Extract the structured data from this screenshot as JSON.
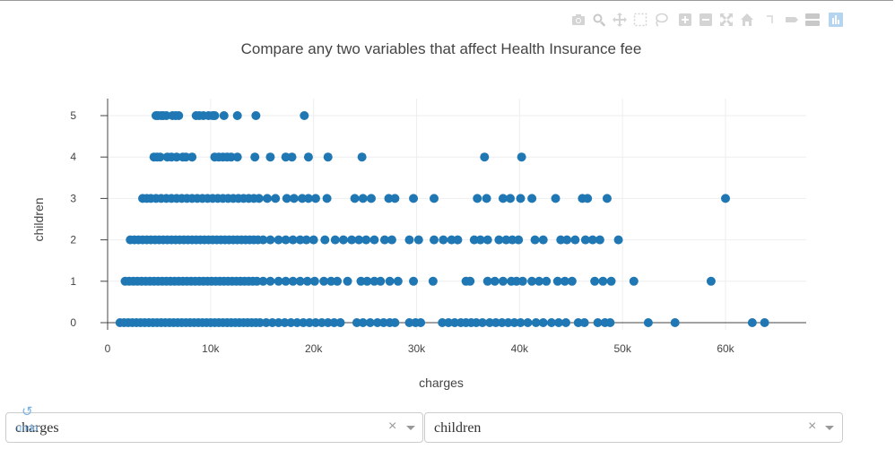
{
  "chart_data": {
    "type": "scatter",
    "title": "Compare any two variables that affect Health Insurance fee",
    "xlabel": "charges",
    "ylabel": "children",
    "xlim": [
      -1000,
      68000
    ],
    "ylim": [
      -0.3,
      5.3
    ],
    "x_ticks": [
      0,
      10000,
      20000,
      30000,
      40000,
      50000,
      60000
    ],
    "x_tick_labels": [
      "0",
      "10k",
      "20k",
      "30k",
      "40k",
      "50k",
      "60k"
    ],
    "y_ticks": [
      0,
      1,
      2,
      3,
      4,
      5
    ],
    "y_tick_labels": [
      "0",
      "1",
      "2",
      "3",
      "4",
      "5"
    ],
    "grid": true,
    "marker_color": "#1f77b4",
    "series": [
      {
        "y": 5,
        "x": [
          4700,
          4900,
          5200,
          5400,
          5700,
          6300,
          6600,
          6900,
          8600,
          8900,
          9300,
          9800,
          10200,
          10400,
          11300,
          12600,
          14400,
          19100
        ]
      },
      {
        "y": 4,
        "x": [
          4500,
          4800,
          5100,
          5800,
          6200,
          6700,
          7300,
          7600,
          8200,
          10400,
          10800,
          11200,
          11600,
          12000,
          12600,
          14300,
          15800,
          17300,
          17900,
          19500,
          21400,
          24700,
          36600,
          40200
        ]
      },
      {
        "y": 3,
        "x": [
          3400,
          3800,
          4200,
          4700,
          5200,
          5700,
          6200,
          6700,
          7200,
          7700,
          8200,
          8700,
          9200,
          9700,
          10200,
          10700,
          11200,
          11700,
          12200,
          12700,
          13200,
          13700,
          14200,
          14700,
          15500,
          16300,
          17400,
          18100,
          18900,
          19500,
          20200,
          21300,
          24000,
          24800,
          25600,
          27300,
          27900,
          29700,
          31700,
          35900,
          36800,
          38400,
          39100,
          40100,
          41200,
          43500,
          46100,
          46600,
          48500,
          60000
        ]
      },
      {
        "y": 2,
        "x": [
          2200,
          2600,
          3000,
          3400,
          3800,
          4200,
          4600,
          5000,
          5400,
          5800,
          6200,
          6600,
          7000,
          7400,
          7800,
          8200,
          8600,
          9000,
          9400,
          9800,
          10200,
          10600,
          11000,
          11400,
          11800,
          12200,
          12600,
          13000,
          13400,
          13800,
          14200,
          14600,
          15100,
          15800,
          16600,
          17300,
          18000,
          18700,
          19300,
          20000,
          21100,
          22100,
          22900,
          23700,
          24400,
          25100,
          25900,
          26900,
          27600,
          29300,
          30200,
          31700,
          32600,
          33400,
          34000,
          35600,
          36200,
          36900,
          38000,
          38700,
          39300,
          39900,
          41500,
          42300,
          44000,
          44600,
          45400,
          46400,
          47100,
          47800,
          49600
        ]
      },
      {
        "y": 1,
        "x": [
          1700,
          2100,
          2500,
          2900,
          3300,
          3700,
          4100,
          4500,
          4900,
          5300,
          5700,
          6100,
          6500,
          6900,
          7300,
          7700,
          8100,
          8500,
          8900,
          9300,
          9700,
          10100,
          10500,
          10900,
          11300,
          11700,
          12100,
          12500,
          12900,
          13300,
          13700,
          14100,
          14500,
          15100,
          15800,
          16600,
          17300,
          18000,
          18700,
          19400,
          20100,
          21000,
          21700,
          22300,
          23300,
          24600,
          25200,
          25900,
          26500,
          27400,
          28200,
          29700,
          31600,
          34800,
          35200,
          36900,
          37600,
          38400,
          39200,
          39700,
          40300,
          41200,
          41900,
          42600,
          43700,
          44400,
          45100,
          47300,
          48100,
          48900,
          51100,
          58600
        ]
      },
      {
        "y": 0,
        "x": [
          1200,
          1600,
          2000,
          2400,
          2800,
          3200,
          3600,
          4000,
          4400,
          4800,
          5200,
          5600,
          6000,
          6400,
          6800,
          7200,
          7600,
          8000,
          8400,
          8800,
          9200,
          9600,
          10000,
          10400,
          10800,
          11200,
          11600,
          12000,
          12400,
          12800,
          13200,
          13600,
          14000,
          14400,
          14800,
          15400,
          16000,
          16600,
          17200,
          17800,
          18400,
          19000,
          19600,
          20200,
          20800,
          21400,
          22000,
          22600,
          24200,
          24800,
          25500,
          26200,
          26800,
          27400,
          27900,
          29300,
          29900,
          30400,
          32500,
          33100,
          33700,
          34300,
          34800,
          35300,
          35800,
          36400,
          37100,
          37700,
          38300,
          38900,
          39500,
          40100,
          40800,
          41600,
          42300,
          43100,
          43800,
          44500,
          45700,
          46300,
          47600,
          48300,
          48800,
          52500,
          55100,
          62600,
          63800
        ]
      }
    ]
  },
  "modebar": {
    "icons": [
      "camera-icon",
      "zoom-icon",
      "pan-icon",
      "box-select-icon",
      "lasso-icon",
      "zoom-in-icon",
      "zoom-out-icon",
      "autoscale-icon",
      "reset-axes-icon",
      "spike-lines-icon",
      "hover-closest-icon",
      "hover-compare-icon",
      "plotly-logo-icon"
    ]
  },
  "controls": {
    "x_dropdown": {
      "value": "charges",
      "clear": "×"
    },
    "y_dropdown": {
      "value": "children",
      "clear": "×"
    },
    "undo_label": "undo"
  }
}
